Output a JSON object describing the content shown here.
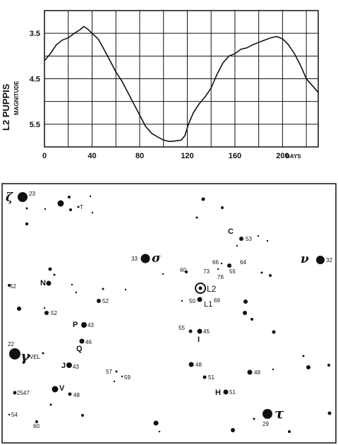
{
  "chart_data": {
    "type": "line",
    "ylabel": "L2 PUPPIS",
    "ylabel_sub": "MAGNITUDE",
    "x_unit": "DAYS",
    "xlim": [
      0,
      230
    ],
    "ylim_inverted": [
      3.0,
      6.0
    ],
    "x_ticks": [
      "0",
      "40",
      "80",
      "120",
      "160",
      "200"
    ],
    "y_ticks": [
      "3.5",
      "4.5",
      "5.5"
    ],
    "grid": true,
    "x": [
      0,
      5,
      10,
      15,
      20,
      25,
      30,
      33,
      36,
      40,
      45,
      50,
      55,
      60,
      65,
      70,
      75,
      80,
      85,
      90,
      95,
      100,
      105,
      110,
      115,
      118,
      121,
      125,
      130,
      135,
      140,
      145,
      150,
      155,
      160,
      165,
      170,
      175,
      180,
      185,
      190,
      195,
      200,
      205,
      210,
      215,
      220,
      225,
      230
    ],
    "y": [
      4.1,
      3.95,
      3.75,
      3.65,
      3.6,
      3.5,
      3.42,
      3.35,
      3.4,
      3.5,
      3.62,
      3.85,
      4.1,
      4.35,
      4.55,
      4.8,
      5.05,
      5.3,
      5.55,
      5.7,
      5.78,
      5.85,
      5.88,
      5.87,
      5.85,
      5.75,
      5.5,
      5.25,
      5.05,
      4.9,
      4.7,
      4.4,
      4.15,
      4.0,
      3.95,
      3.85,
      3.82,
      3.75,
      3.7,
      3.65,
      3.6,
      3.57,
      3.62,
      3.75,
      3.95,
      4.2,
      4.5,
      4.65,
      4.8
    ]
  },
  "star_chart": {
    "labels": {
      "zeta": "ζ",
      "zeta_num": "23",
      "T": "T",
      "C": "C",
      "C_num": "53",
      "sigma_num": "33",
      "sigma": "σ",
      "nu": "ν",
      "nu_num": "32",
      "n60": "60",
      "n73": "73",
      "n66": "66",
      "n64": "64",
      "n55a": "55",
      "n76": "76",
      "N": "N",
      "n52a": "52",
      "L2": "L2",
      "L1": "L1",
      "n50": "50",
      "n69": "69",
      "n52b": "52",
      "n52c": "52",
      "P": "P",
      "n43a": "43",
      "n55b": "55",
      "n45": "45",
      "I": "I",
      "Q": "Q",
      "n46": "46",
      "gamma_num": "22",
      "gamma": "γ",
      "vel": "VEL",
      "J": "J",
      "n43b": "43",
      "n57": "57",
      "n59": "59",
      "n48a": "48",
      "n51a": "51",
      "n49": "49",
      "n2547": "2547",
      "V": "V",
      "n48b": "48",
      "H": "H",
      "n51b": "51",
      "n54": "54",
      "n60b": "60",
      "tau": "τ",
      "tau_num": "29"
    }
  }
}
